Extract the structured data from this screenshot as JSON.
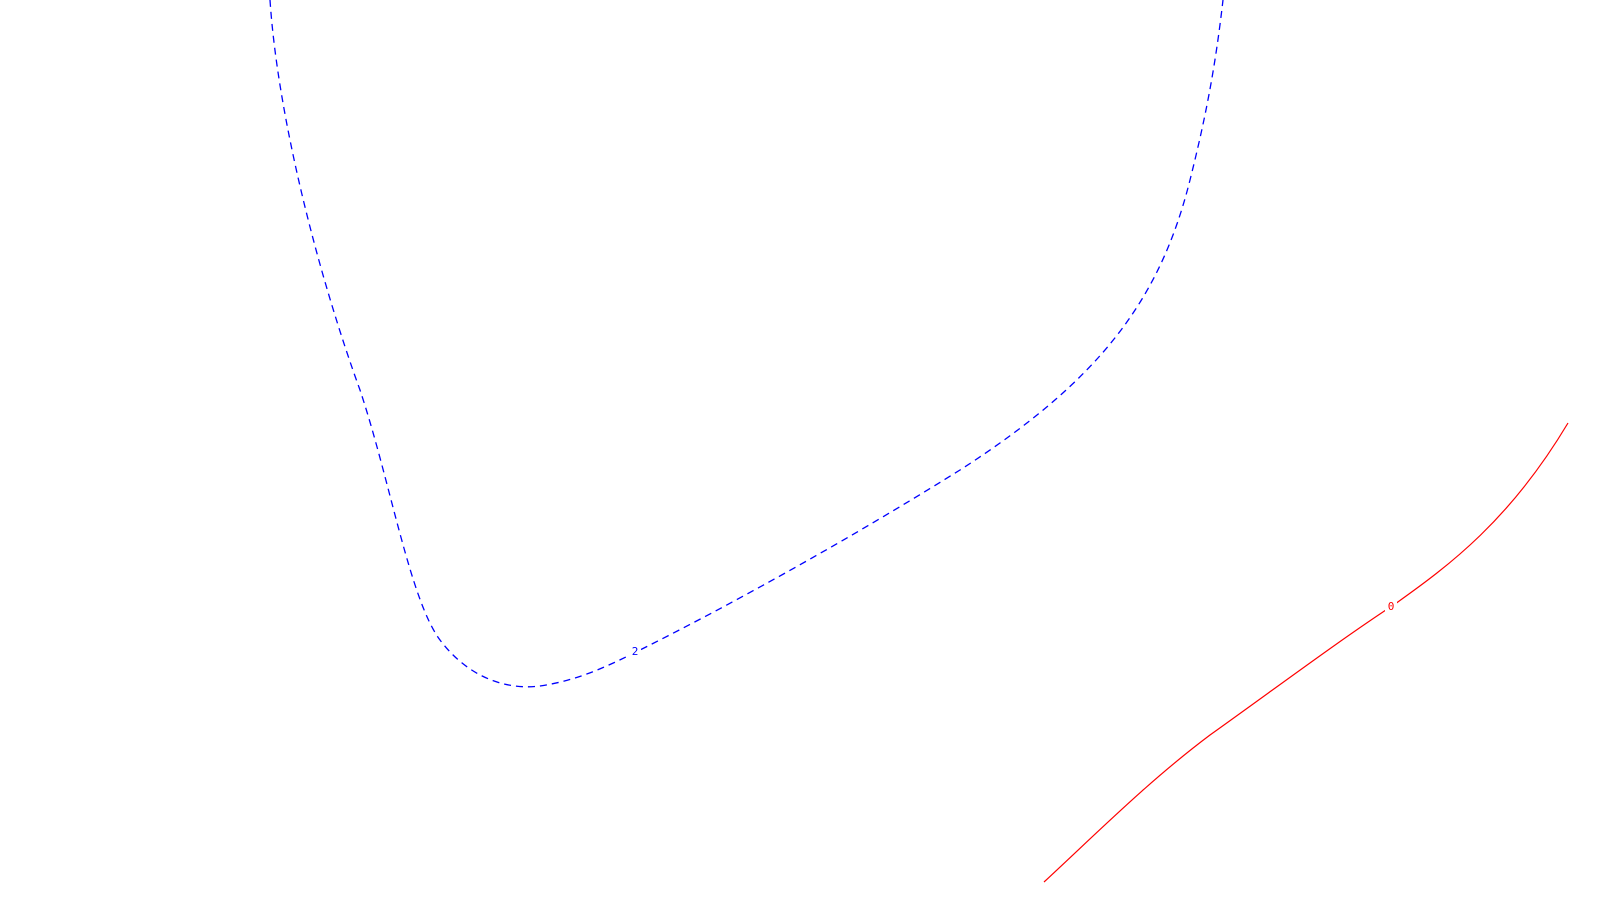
{
  "contours": [
    {
      "level_label": "2",
      "color": "#0000ff",
      "line_style": "dashed"
    },
    {
      "level_label": "0",
      "color": "#ff0000",
      "line_style": "solid"
    }
  ]
}
